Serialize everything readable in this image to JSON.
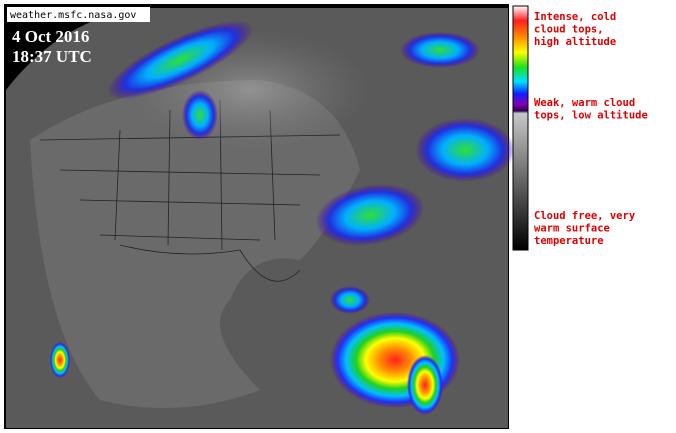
{
  "header": {
    "source": "weather.msfc.nasa.gov",
    "date": "4 Oct 2016",
    "time": "18:37 UTC"
  },
  "legend": {
    "items": [
      {
        "lines": [
          "Intense, cold",
          "cloud tops,",
          "high altitude"
        ]
      },
      {
        "lines": [
          "Weak, warm cloud",
          "tops, low altitude"
        ]
      },
      {
        "lines": [
          "Cloud free, very",
          "warm surface",
          "temperature"
        ]
      }
    ]
  }
}
